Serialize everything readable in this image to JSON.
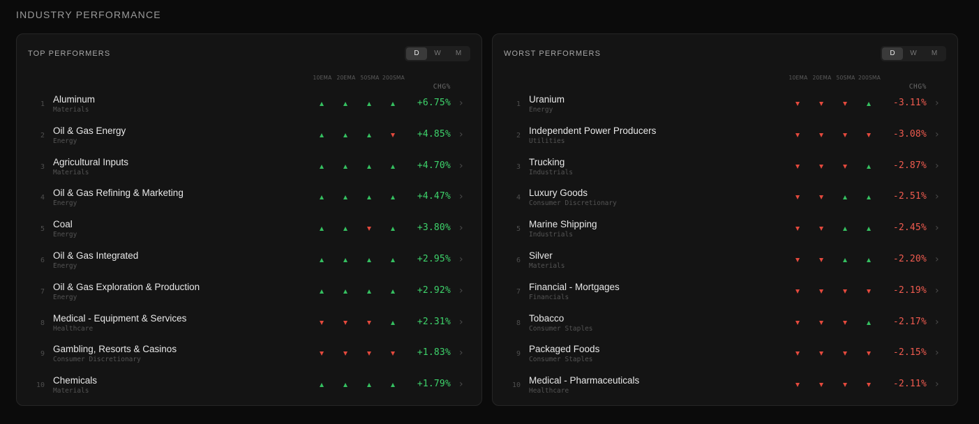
{
  "page": {
    "title": "INDUSTRY PERFORMANCE"
  },
  "columns": {
    "ema10": "10EMA",
    "ema20": "20EMA",
    "sma50": "50SMA",
    "sma200": "200SMA",
    "chg": "CHG%"
  },
  "colors": {
    "up": "#35c060",
    "down": "#e4493d",
    "positive": "#3ed36b",
    "negative": "#f05b4f"
  },
  "panels": [
    {
      "id": "top",
      "title": "TOP PERFORMERS",
      "timeframes": [
        {
          "label": "D",
          "active": true
        },
        {
          "label": "W",
          "active": false
        },
        {
          "label": "M",
          "active": false
        }
      ],
      "rows": [
        {
          "rank": "1",
          "name": "Aluminum",
          "sector": "Materials",
          "signals": [
            "up",
            "up",
            "up",
            "up"
          ],
          "chg": "+6.75%"
        },
        {
          "rank": "2",
          "name": "Oil & Gas Energy",
          "sector": "Energy",
          "signals": [
            "up",
            "up",
            "up",
            "down"
          ],
          "chg": "+4.85%"
        },
        {
          "rank": "3",
          "name": "Agricultural Inputs",
          "sector": "Materials",
          "signals": [
            "up",
            "up",
            "up",
            "up"
          ],
          "chg": "+4.70%"
        },
        {
          "rank": "4",
          "name": "Oil & Gas Refining & Marketing",
          "sector": "Energy",
          "signals": [
            "up",
            "up",
            "up",
            "up"
          ],
          "chg": "+4.47%"
        },
        {
          "rank": "5",
          "name": "Coal",
          "sector": "Energy",
          "signals": [
            "up",
            "up",
            "down",
            "up"
          ],
          "chg": "+3.80%"
        },
        {
          "rank": "6",
          "name": "Oil & Gas Integrated",
          "sector": "Energy",
          "signals": [
            "up",
            "up",
            "up",
            "up"
          ],
          "chg": "+2.95%"
        },
        {
          "rank": "7",
          "name": "Oil & Gas Exploration & Production",
          "sector": "Energy",
          "signals": [
            "up",
            "up",
            "up",
            "up"
          ],
          "chg": "+2.92%"
        },
        {
          "rank": "8",
          "name": "Medical - Equipment & Services",
          "sector": "Healthcare",
          "signals": [
            "down",
            "down",
            "down",
            "up"
          ],
          "chg": "+2.31%"
        },
        {
          "rank": "9",
          "name": "Gambling, Resorts & Casinos",
          "sector": "Consumer Discretionary",
          "signals": [
            "down",
            "down",
            "down",
            "down"
          ],
          "chg": "+1.83%"
        },
        {
          "rank": "10",
          "name": "Chemicals",
          "sector": "Materials",
          "signals": [
            "up",
            "up",
            "up",
            "up"
          ],
          "chg": "+1.79%"
        }
      ]
    },
    {
      "id": "worst",
      "title": "WORST PERFORMERS",
      "timeframes": [
        {
          "label": "D",
          "active": true
        },
        {
          "label": "W",
          "active": false
        },
        {
          "label": "M",
          "active": false
        }
      ],
      "rows": [
        {
          "rank": "1",
          "name": "Uranium",
          "sector": "Energy",
          "signals": [
            "down",
            "down",
            "down",
            "up"
          ],
          "chg": "-3.11%"
        },
        {
          "rank": "2",
          "name": "Independent Power Producers",
          "sector": "Utilities",
          "signals": [
            "down",
            "down",
            "down",
            "down"
          ],
          "chg": "-3.08%"
        },
        {
          "rank": "3",
          "name": "Trucking",
          "sector": "Industrials",
          "signals": [
            "down",
            "down",
            "down",
            "up"
          ],
          "chg": "-2.87%"
        },
        {
          "rank": "4",
          "name": "Luxury Goods",
          "sector": "Consumer Discretionary",
          "signals": [
            "down",
            "down",
            "up",
            "up"
          ],
          "chg": "-2.51%"
        },
        {
          "rank": "5",
          "name": "Marine Shipping",
          "sector": "Industrials",
          "signals": [
            "down",
            "down",
            "up",
            "up"
          ],
          "chg": "-2.45%"
        },
        {
          "rank": "6",
          "name": "Silver",
          "sector": "Materials",
          "signals": [
            "down",
            "down",
            "up",
            "up"
          ],
          "chg": "-2.20%"
        },
        {
          "rank": "7",
          "name": "Financial - Mortgages",
          "sector": "Financials",
          "signals": [
            "down",
            "down",
            "down",
            "down"
          ],
          "chg": "-2.19%"
        },
        {
          "rank": "8",
          "name": "Tobacco",
          "sector": "Consumer Staples",
          "signals": [
            "down",
            "down",
            "down",
            "up"
          ],
          "chg": "-2.17%"
        },
        {
          "rank": "9",
          "name": "Packaged Foods",
          "sector": "Consumer Staples",
          "signals": [
            "down",
            "down",
            "down",
            "down"
          ],
          "chg": "-2.15%"
        },
        {
          "rank": "10",
          "name": "Medical - Pharmaceuticals",
          "sector": "Healthcare",
          "signals": [
            "down",
            "down",
            "down",
            "down"
          ],
          "chg": "-2.11%"
        }
      ]
    }
  ]
}
